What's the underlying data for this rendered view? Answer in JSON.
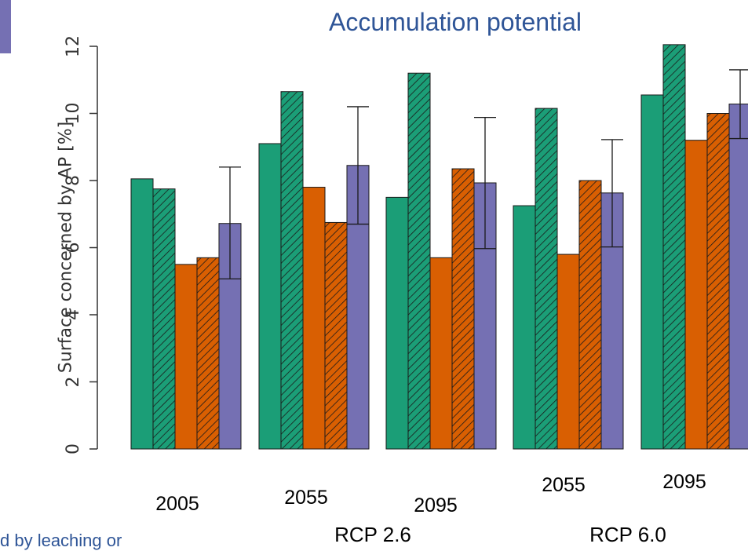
{
  "title": "Accumulation potential",
  "footnote": "d by leaching or",
  "chart_data": {
    "type": "bar",
    "title": "Accumulation potential",
    "ylabel": "Surface concerned by AP [%]",
    "xlabel": "",
    "ylim": [
      0,
      12
    ],
    "yticks": [
      0,
      2,
      4,
      6,
      8,
      10,
      12
    ],
    "grid": false,
    "groups": [
      {
        "label": "2005",
        "scenario": ""
      },
      {
        "label": "2055",
        "scenario": "RCP 2.6"
      },
      {
        "label": "2095",
        "scenario": "RCP 2.6"
      },
      {
        "label": "2055",
        "scenario": "RCP 6.0"
      },
      {
        "label": "2095",
        "scenario": "RCP 6.0"
      }
    ],
    "scenarios": [
      "RCP 2.6",
      "RCP 6.0"
    ],
    "series": [
      {
        "color": "#1b9e77",
        "hatched": false,
        "values": [
          8.05,
          9.1,
          7.5,
          7.25,
          10.55
        ]
      },
      {
        "color": "#1b9e77",
        "hatched": true,
        "values": [
          7.75,
          10.65,
          11.2,
          10.15,
          12.05
        ]
      },
      {
        "color": "#d95f02",
        "hatched": false,
        "values": [
          5.5,
          7.8,
          5.7,
          5.8,
          9.2
        ]
      },
      {
        "color": "#d95f02",
        "hatched": true,
        "values": [
          5.7,
          6.75,
          8.35,
          8.0,
          10.0
        ]
      },
      {
        "color": "#7570b3",
        "hatched": false,
        "values": [
          6.72,
          8.45,
          7.93,
          7.63,
          10.28
        ],
        "error_low": [
          5.07,
          6.7,
          5.97,
          6.02,
          9.25
        ],
        "error_high": [
          8.4,
          10.2,
          9.88,
          9.22,
          11.3
        ]
      }
    ]
  }
}
